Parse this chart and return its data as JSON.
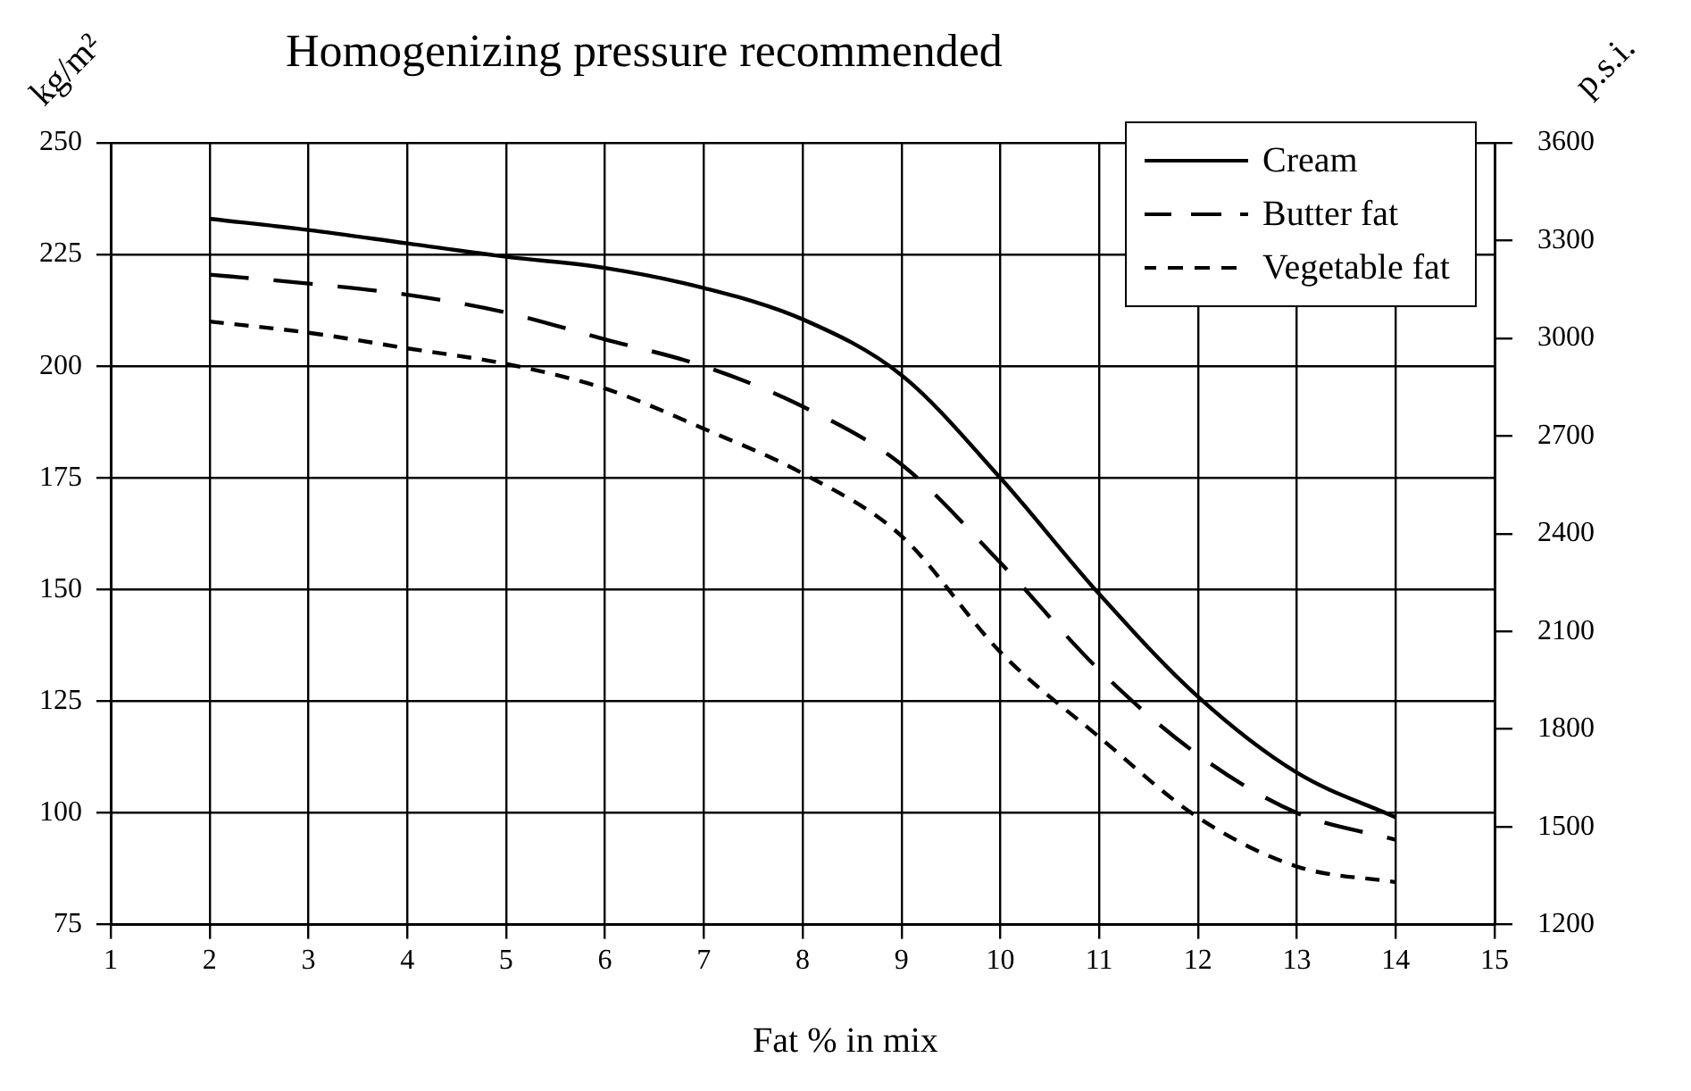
{
  "chart_data": {
    "type": "line",
    "title": "Homogenizing pressure recommended",
    "xlabel": "Fat % in mix",
    "ylabel": "kg/m²",
    "y2label": "p.s.i.",
    "x": [
      2,
      3,
      4,
      5,
      6,
      7,
      8,
      9,
      10,
      11,
      12,
      13,
      14
    ],
    "series": [
      {
        "name": "Cream",
        "color": "#000000",
        "line_style": "solid",
        "values": [
          233,
          230.5,
          227.5,
          224.5,
          222,
          217.5,
          210.5,
          198,
          175,
          149,
          126,
          109,
          99
        ]
      },
      {
        "name": "Butter fat",
        "color": "#000000",
        "line_style": "dashed",
        "values": [
          220.5,
          218.5,
          216,
          212,
          206,
          200,
          191,
          178,
          156,
          132,
          113,
          100,
          94
        ]
      },
      {
        "name": "Vegetable fat",
        "color": "#000000",
        "line_style": "dotted",
        "values": [
          210,
          207.5,
          204,
          200.5,
          195,
          186,
          176,
          162,
          136,
          117,
          99,
          88,
          84.5
        ]
      }
    ],
    "xlim": [
      1,
      15
    ],
    "xticks": [
      1,
      2,
      3,
      4,
      5,
      6,
      7,
      8,
      9,
      10,
      11,
      12,
      13,
      14,
      15
    ],
    "ylim": [
      75,
      250
    ],
    "yticks": [
      75,
      100,
      125,
      150,
      175,
      200,
      225,
      250
    ],
    "y2lim": [
      1200,
      3600
    ],
    "y2ticks": [
      1200,
      1500,
      1800,
      2100,
      2400,
      2700,
      3000,
      3300,
      3600
    ],
    "grid": true,
    "legend": "top right",
    "marker": "none"
  }
}
